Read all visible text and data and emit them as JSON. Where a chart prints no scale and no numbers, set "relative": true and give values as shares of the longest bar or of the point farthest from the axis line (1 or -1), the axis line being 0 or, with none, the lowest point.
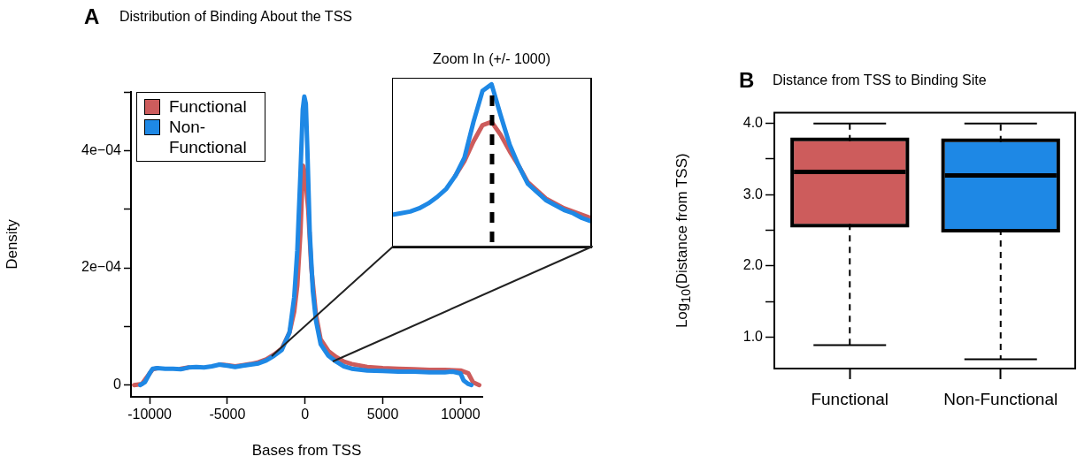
{
  "chart_data": [
    {
      "type": "line",
      "title": "Distribution of Binding About the TSS",
      "annotations": [
        "A"
      ],
      "xlabel": "Bases from TSS",
      "ylabel": "Density",
      "xlim": [
        -11200,
        11400
      ],
      "ylim": [
        -2e-05,
        0.0005
      ],
      "xticks": [
        -10000,
        -5000,
        0,
        5000,
        10000
      ],
      "yticks": [
        0,
        {
          "value": 0.0001,
          "label": null
        },
        {
          "value": 0.0002,
          "label": "2e−04"
        },
        {
          "value": 0.0003,
          "label": null
        },
        {
          "value": 0.0004,
          "label": "4e−04"
        },
        {
          "value": 0.0005,
          "label": null
        }
      ],
      "legend": "top left",
      "series": [
        {
          "name": "Functional",
          "color": "#cd5c5c",
          "x": [
            -11000,
            -10500,
            -10000,
            -9800,
            -9500,
            -9000,
            -8500,
            -8000,
            -7500,
            -7000,
            -6500,
            -6000,
            -5500,
            -5000,
            -4500,
            -4000,
            -3500,
            -3000,
            -2500,
            -2000,
            -1500,
            -1000,
            -700,
            -500,
            -300,
            -130,
            0,
            200,
            400,
            700,
            1000,
            1500,
            2000,
            2500,
            3000,
            4000,
            5000,
            6000,
            7000,
            8000,
            9000,
            10000,
            10500,
            10800,
            11200
          ],
          "values": [
            0,
            2e-06,
            2e-05,
            2.7e-05,
            2.9e-05,
            null,
            null,
            2.8e-05,
            3e-05,
            null,
            null,
            null,
            3.5e-05,
            3.4e-05,
            3.2e-05,
            3.4e-05,
            3.6e-05,
            3.9e-05,
            4.4e-05,
            5.2e-05,
            6.2e-05,
            9e-05,
            0.000125,
            0.00017,
            0.00026,
            0.000374,
            0.00036,
            0.0003,
            0.0002,
            0.00012,
            7.8e-05,
            5.8e-05,
            4.8e-05,
            4e-05,
            3.6e-05,
            3.1e-05,
            2.9e-05,
            2.8e-05,
            2.7e-05,
            2.6e-05,
            2.6e-05,
            2.5e-05,
            2e-05,
            5e-06,
            0
          ]
        },
        {
          "name": "Non-Functional",
          "color": "#1e88e5",
          "x": [
            -10600,
            -10300,
            -10000,
            -9800,
            -9500,
            -9000,
            -8500,
            -8000,
            -7500,
            -7000,
            -6500,
            -6000,
            -5500,
            -5000,
            -4500,
            -4000,
            -3500,
            -3000,
            -2500,
            -2000,
            -1500,
            -1000,
            -700,
            -500,
            -300,
            -150,
            -50,
            50,
            150,
            300,
            500,
            700,
            1000,
            1500,
            2000,
            2500,
            3000,
            4000,
            5000,
            6000,
            7000,
            8000,
            9000,
            9500,
            10000,
            10200,
            10500,
            10700
          ],
          "values": [
            0,
            5e-06,
            2e-05,
            2.8e-05,
            2.9e-05,
            2.8e-05,
            2.8e-05,
            2.7e-05,
            3e-05,
            3.1e-05,
            3e-05,
            3.2e-05,
            3.5e-05,
            3.3e-05,
            3.1e-05,
            3.3e-05,
            3.5e-05,
            3.7e-05,
            4.2e-05,
            5e-05,
            6e-05,
            9e-05,
            0.00015,
            0.00023,
            0.00036,
            0.00047,
            0.000492,
            0.00048,
            0.0004,
            0.00026,
            0.00016,
            0.00011,
            7e-05,
            5e-05,
            4e-05,
            3.2e-05,
            2.8e-05,
            2.5e-05,
            2.4e-05,
            2.3e-05,
            2.3e-05,
            2.2e-05,
            2.2e-05,
            2.3e-05,
            2e-05,
            8e-06,
            2e-06,
            0
          ]
        }
      ]
    },
    {
      "type": "line",
      "title": "Zoom In (+/- 1000)",
      "relative": true,
      "categories": [
        null,
        null,
        null,
        null,
        null,
        null,
        null,
        null,
        null,
        null,
        null,
        null,
        null,
        null,
        null,
        null,
        null,
        null,
        null,
        null,
        null,
        null,
        null
      ],
      "series": [
        {
          "color": "#cd5c5c",
          "values": [
            null,
            null,
            null,
            null,
            null,
            null,
            null,
            0.44,
            0.53,
            0.65,
            0.75,
            0.77,
            0.69,
            0.59,
            0.5,
            0.4,
            0.35,
            0.3,
            0.27,
            0.24,
            0.22,
            0.2,
            0.18
          ]
        },
        {
          "color": "#1e88e5",
          "values": [
            0.2,
            0.21,
            0.22,
            0.24,
            0.27,
            0.31,
            0.36,
            0.44,
            0.55,
            0.77,
            0.96,
            1,
            0.81,
            0.63,
            0.5,
            0.39,
            0.34,
            0.29,
            0.26,
            0.23,
            0.21,
            0.18,
            0.16
          ]
        }
      ]
    },
    {
      "type": "box",
      "title": "Distance from TSS to Binding Site",
      "annotations": [
        "B"
      ],
      "ylabel": "Log$_{10}$(Distance from TSS)",
      "categories": [
        "Functional",
        "Non-Functional"
      ],
      "colors": [
        "#cd5c5c",
        "#1e88e5"
      ],
      "ylim": [
        0.56,
        4.15
      ],
      "yticks": [
        {
          "value": 1,
          "label": "1.0"
        },
        {
          "value": 1.5,
          "label": null
        },
        {
          "value": 2,
          "label": "2.0"
        },
        {
          "value": 2.5,
          "label": null
        },
        {
          "value": 3,
          "label": "3.0"
        },
        {
          "value": 3.5,
          "label": null
        },
        {
          "value": 4,
          "label": "4.0"
        }
      ],
      "boxes": [
        {
          "low": 0.89,
          "q1": 2.59,
          "median": 3.32,
          "q3": 3.75,
          "high": 4.0
        },
        {
          "low": 0.69,
          "q1": 2.52,
          "median": 3.27,
          "q3": 3.74,
          "high": 4.0
        }
      ]
    }
  ]
}
